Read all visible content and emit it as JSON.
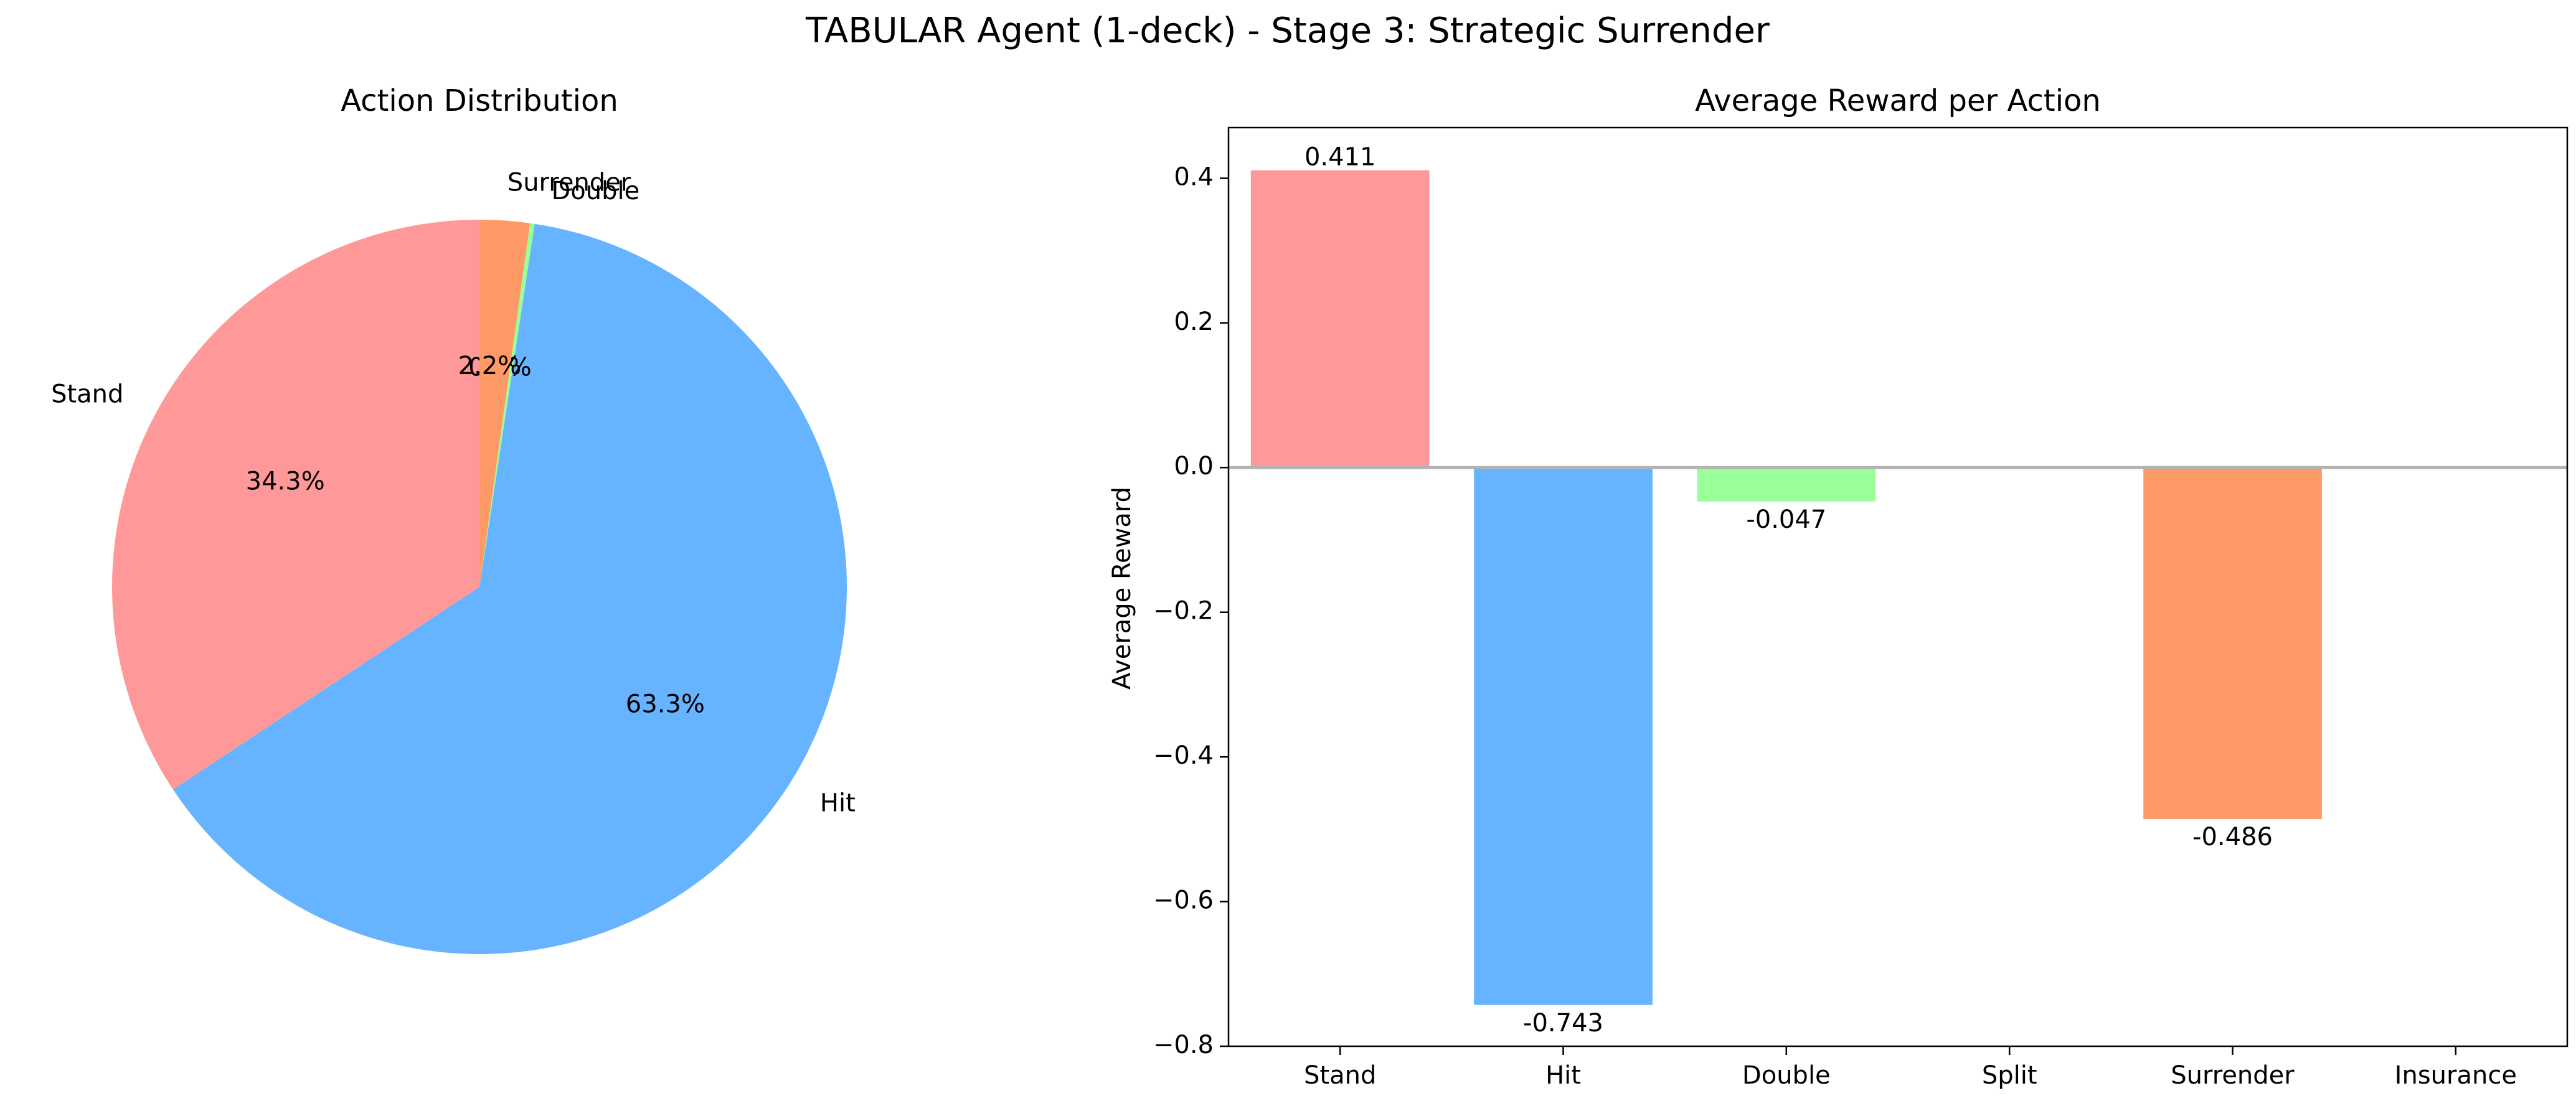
{
  "figure": {
    "title": "TABULAR Agent (1-deck) - Stage 3: Strategic Surrender"
  },
  "colors": {
    "Stand": "#ff9999",
    "Hit": "#66b3ff",
    "Double": "#99ff99",
    "Surrender": "#ff9966",
    "zero_line": "#b3b3b3",
    "axis": "#000000"
  },
  "chart_data": [
    {
      "type": "pie",
      "title": "Action Distribution",
      "start_angle_deg": 90,
      "direction": "counterclockwise",
      "slices": [
        {
          "label": "Stand",
          "percent": 34.3,
          "pct_label": "34.3%"
        },
        {
          "label": "Hit",
          "percent": 63.3,
          "pct_label": "63.3%"
        },
        {
          "label": "Double",
          "percent": 0.2,
          "pct_label": "0.2%"
        },
        {
          "label": "Surrender",
          "percent": 2.2,
          "pct_label": "2.2%"
        }
      ]
    },
    {
      "type": "bar",
      "title": "Average Reward per Action",
      "xlabel": "",
      "ylabel": "Average Reward",
      "categories": [
        "Stand",
        "Hit",
        "Double",
        "Split",
        "Surrender",
        "Insurance"
      ],
      "values": [
        0.411,
        -0.743,
        -0.047,
        null,
        -0.486,
        null
      ],
      "value_labels": [
        "0.411",
        "-0.743",
        "-0.047",
        "",
        "-0.486",
        ""
      ],
      "ylim": [
        -0.8,
        0.47
      ],
      "yticks": [
        -0.8,
        -0.6,
        -0.4,
        -0.2,
        0.0,
        0.2,
        0.4
      ],
      "ytick_labels": [
        "−0.8",
        "−0.6",
        "−0.4",
        "−0.2",
        "0.0",
        "0.2",
        "0.4"
      ],
      "grid": false,
      "zero_line": true
    }
  ]
}
